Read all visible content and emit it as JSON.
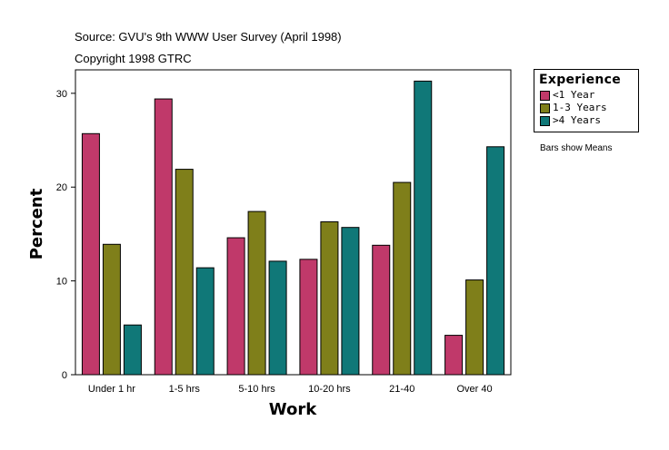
{
  "chart_data": {
    "type": "bar",
    "source_line": "Source: GVU's 9th WWW User Survey (April 1998)",
    "copyright_line": "Copyright 1998 GTRC",
    "xlabel": "Work",
    "ylabel": "Percent",
    "ylim": [
      0,
      32.5
    ],
    "yticks": [
      0,
      10,
      20,
      30
    ],
    "categories": [
      "Under 1 hr",
      "1-5 hrs",
      "5-10 hrs",
      "10-20 hrs",
      "21-40",
      "Over 40"
    ],
    "legend_title": "Experience",
    "series": [
      {
        "name": "<1 Year",
        "color": "#c0396a",
        "values": [
          25.7,
          29.4,
          14.6,
          12.3,
          13.8,
          4.2
        ]
      },
      {
        "name": "1-3 Years",
        "color": "#7f7f1a",
        "values": [
          13.9,
          21.9,
          17.4,
          16.3,
          20.5,
          10.1
        ]
      },
      {
        "name": ">4 Years",
        "color": "#107878",
        "values": [
          5.3,
          11.4,
          12.1,
          15.7,
          31.3,
          24.3
        ]
      }
    ],
    "note": "Bars show Means"
  }
}
